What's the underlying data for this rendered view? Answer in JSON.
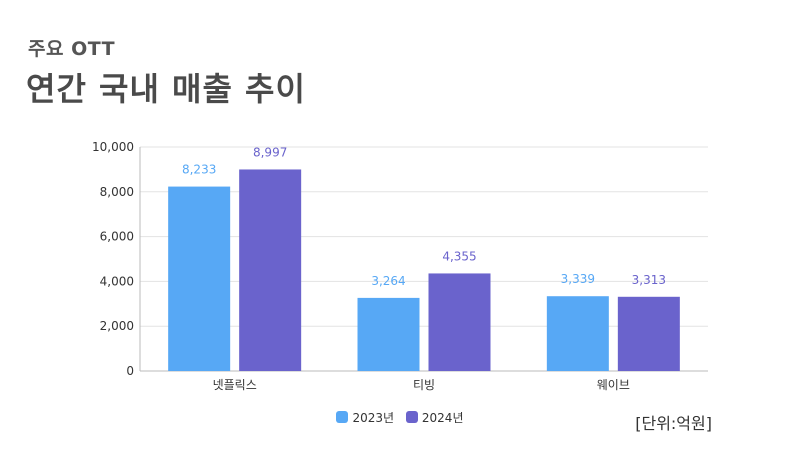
{
  "header": {
    "subtitle": "주요 OTT",
    "title": "연간 국내 매출 추이"
  },
  "unit_label": "[단위:억원]",
  "colors": {
    "series_2023": "#57A8F5",
    "series_2024": "#6A63CC",
    "grid": "#E3E3E3",
    "axis": "#BBBBBB"
  },
  "chart_data": {
    "type": "bar",
    "categories": [
      "넷플릭스",
      "티빙",
      "웨이브"
    ],
    "series": [
      {
        "name": "2023년",
        "values": [
          8233,
          3264,
          3339
        ],
        "labels": [
          "8,233",
          "3,264",
          "3,339"
        ]
      },
      {
        "name": "2024년",
        "values": [
          8997,
          4355,
          3313
        ],
        "labels": [
          "8,997",
          "4,355",
          "3,313"
        ]
      }
    ],
    "ylim": [
      0,
      10000
    ],
    "yticks": [
      0,
      2000,
      4000,
      6000,
      8000,
      10000
    ],
    "ytick_labels": [
      "0",
      "2,000",
      "4,000",
      "6,000",
      "8,000",
      "10,000"
    ],
    "grid": true,
    "legend_position": "bottom-center"
  }
}
